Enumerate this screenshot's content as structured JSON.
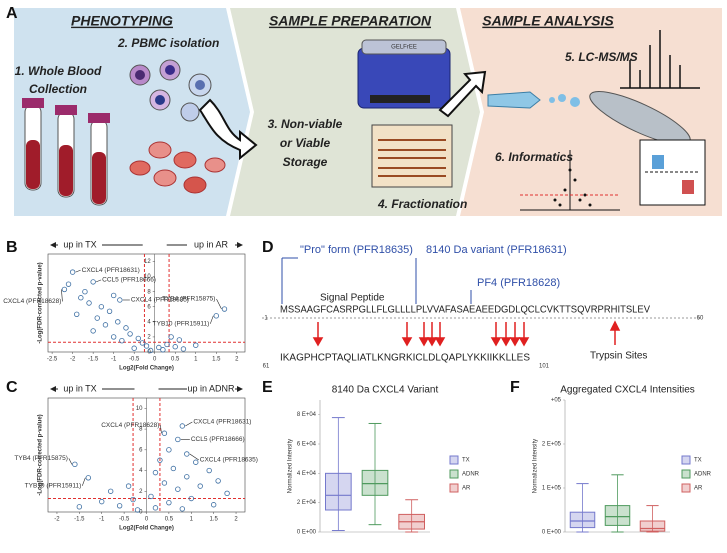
{
  "panel_labels": [
    "A",
    "B",
    "C",
    "D",
    "E",
    "F"
  ],
  "workflow": {
    "headers": [
      "PHENOTYPING",
      "SAMPLE PREPARATION",
      "SAMPLE ANALYSIS"
    ],
    "step1": [
      "1. Whole Blood",
      "Collection"
    ],
    "step2": [
      "2. PBMC isolation"
    ],
    "step3": [
      "3. Non-viable",
      "or Viable",
      "Storage"
    ],
    "instrument": "GELFrEE",
    "step4": [
      "4. Fractionation"
    ],
    "step5": [
      "5. LC-MS/MS"
    ],
    "step6": [
      "6. Informatics"
    ]
  },
  "sequence": {
    "forms": [
      "\"Pro\" form (PFR18635)",
      "8140 Da variant (PFR18631)",
      "PF4 (PFR18628)"
    ],
    "signal_peptide": "Signal Peptide",
    "rows": [
      {
        "start": 1,
        "residues": "MSSAAGFCASRPGLLFLGLLLLPLVVAFASAEAEEDGDLQCLCVKTTSQVRPRHITSLEV",
        "end": 60
      },
      {
        "start": 61,
        "residues": "IKAGPHCPTAQLIATLKNGRKICLDLQAPLYKKIIKKLLES",
        "end": 101
      }
    ],
    "trypsin": "Trypsin Sites"
  },
  "chart_data": [
    {
      "type": "scatter",
      "xlabel": "Log2(Fold Change)",
      "ylabel": "-Log(FDR-corrected p-value)",
      "directions": [
        "up in TX",
        "up in AR"
      ],
      "annotations": [
        "CXCL4 (PFR18631)",
        "CCL5 (PFR18666)",
        "CXCL4 (PFR18628)",
        "CXCL4 (PFR18635)",
        "TYB4 (PFR15875)",
        "TYB10 (PFR15911)"
      ],
      "x": [
        -2.0,
        -1.5,
        -2.2,
        -0.85,
        1.7,
        1.5,
        -1.8,
        -1.6,
        -1.3,
        -1.1,
        -1.9,
        -1.4,
        -0.9,
        -1.2,
        -0.7,
        -1.5,
        -0.6,
        -1.0,
        -0.4,
        -0.8,
        -0.3,
        -0.2,
        0.1,
        0.3,
        0.5,
        -0.5,
        0.2,
        0.7,
        -0.1,
        1.0,
        0.4,
        0.6,
        -2.1,
        -1.7,
        -1.0
      ],
      "y": [
        10.6,
        9.3,
        8.3,
        6.9,
        5.7,
        4.8,
        7.2,
        6.5,
        6.0,
        5.4,
        5.0,
        4.5,
        4.0,
        3.6,
        3.2,
        2.8,
        2.4,
        2.0,
        1.8,
        1.5,
        1.2,
        0.8,
        0.6,
        1.0,
        0.7,
        0.5,
        0.3,
        0.4,
        0.2,
        0.9,
        2.0,
        1.6,
        9.0,
        8.0,
        7.5
      ],
      "color": "#3d6fa3",
      "xlim": [
        -2.6,
        2.2
      ],
      "xticks": [
        -2.5,
        -2,
        -1.5,
        -1,
        -0.5,
        0,
        0.5,
        1,
        1.5,
        2
      ],
      "ylim": [
        0,
        13
      ],
      "yticks": [
        0,
        2,
        4,
        6,
        8,
        10,
        12
      ],
      "threshold_x": [
        -0.25,
        0.35
      ],
      "threshold_y": 1.3,
      "threshold_color": "#e03030"
    },
    {
      "type": "scatter",
      "xlabel": "Log2(Fold Change)",
      "ylabel": "-Log(FDR-corrected p-value)",
      "directions": [
        "up in TX",
        "up in ADNR"
      ],
      "annotations": [
        "CXCL4 (PFR18631)",
        "CXCL4 (PFR18628)",
        "CCL5 (PFR18666)",
        "CXCL4 (PFR18635)",
        "TYB4 (PFR15875)",
        "TYB10 (PFR15911)"
      ],
      "x": [
        0.8,
        0.4,
        0.7,
        0.9,
        -1.6,
        -1.3,
        0.5,
        0.3,
        1.1,
        0.6,
        1.4,
        0.2,
        0.9,
        1.6,
        0.4,
        1.2,
        0.7,
        -0.4,
        -0.8,
        1.8,
        0.1,
        -0.3,
        1.0,
        -1.0,
        0.5,
        -0.6,
        0.2,
        1.5,
        -1.5,
        0.8,
        -0.2
      ],
      "y": [
        8.3,
        7.6,
        7.0,
        5.6,
        4.6,
        3.3,
        6.0,
        5.0,
        4.8,
        4.2,
        4.0,
        3.8,
        3.4,
        3.0,
        2.8,
        2.5,
        2.2,
        2.5,
        2.0,
        1.8,
        1.5,
        1.2,
        1.3,
        1.0,
        0.9,
        0.6,
        0.4,
        0.7,
        0.5,
        0.3,
        0.2
      ],
      "color": "#3d6fa3",
      "xlim": [
        -2.2,
        2.2
      ],
      "xticks": [
        -2,
        -1.5,
        -1,
        -0.5,
        0,
        0.5,
        1,
        1.5,
        2
      ],
      "ylim": [
        0,
        11
      ],
      "yticks": [
        0,
        2,
        4,
        6,
        8,
        10
      ],
      "threshold_x": [
        -0.3,
        0.3
      ],
      "threshold_y": 1.3,
      "threshold_color": "#e03030"
    },
    {
      "type": "box",
      "title": "8140 Da CXCL4 Variant",
      "ylabel": "Normalized Intensity",
      "ylim": [
        0,
        90000
      ],
      "yticks": [
        {
          "value": 0,
          "label": "0 E+00"
        },
        {
          "value": 20000,
          "label": "2 E+04"
        },
        {
          "value": 40000,
          "label": "4 E+04"
        },
        {
          "value": 60000,
          "label": "6 E+04"
        },
        {
          "value": 80000,
          "label": "8 E+04"
        }
      ],
      "series": [
        {
          "name": "TX",
          "color": "#7478cc",
          "min": 1000,
          "q1": 15000,
          "median": 25000,
          "q3": 40000,
          "max": 78000
        },
        {
          "name": "ADNR",
          "color": "#4f9a5e",
          "min": 5000,
          "q1": 25000,
          "median": 33000,
          "q3": 42000,
          "max": 74000
        },
        {
          "name": "AR",
          "color": "#d06060",
          "min": 0,
          "q1": 2000,
          "median": 7000,
          "q3": 12000,
          "max": 22000
        }
      ]
    },
    {
      "type": "box",
      "title": "Aggregated CXCL4 Intensities",
      "ylabel": "Normalized Intensity",
      "ylim": [
        0,
        300000
      ],
      "yticks": [
        {
          "value": 0,
          "label": "0 E+00"
        },
        {
          "value": 100000,
          "label": "1 E+05"
        },
        {
          "value": 200000,
          "label": "2 E+05"
        },
        {
          "value": 300000,
          "label": "+05"
        }
      ],
      "series": [
        {
          "name": "TX",
          "color": "#7478cc",
          "min": 0,
          "q1": 10000,
          "median": 25000,
          "q3": 45000,
          "max": 110000
        },
        {
          "name": "ADNR",
          "color": "#4f9a5e",
          "min": 0,
          "q1": 15000,
          "median": 35000,
          "q3": 60000,
          "max": 130000
        },
        {
          "name": "AR",
          "color": "#d06060",
          "min": 0,
          "q1": 2000,
          "median": 8000,
          "q3": 25000,
          "max": 60000
        }
      ]
    }
  ]
}
